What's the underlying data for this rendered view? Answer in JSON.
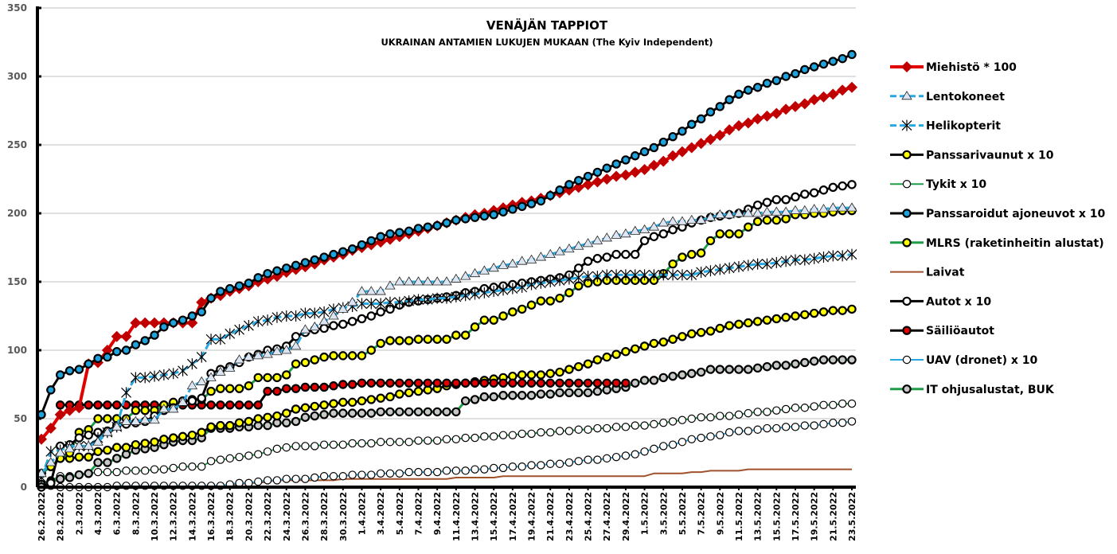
{
  "chart_data": {
    "type": "line",
    "title": "VENÄJÄN TAPPIOT",
    "subtitle": "UKRAINAN ANTAMIEN LUKUJEN MUKAAN (The Kyiv Independent)",
    "xlabel": "",
    "ylabel": "",
    "ylim": [
      0,
      350
    ],
    "yticks": [
      "0",
      "50",
      "100",
      "150",
      "200",
      "250",
      "300",
      "350"
    ],
    "grid": true,
    "legend_position": "right",
    "x": [
      "26.2.2022",
      "27.2.2022",
      "28.2.2022",
      "1.3.2022",
      "2.3.2022",
      "3.3.2022",
      "4.3.2022",
      "5.3.2022",
      "6.3.2022",
      "7.3.2022",
      "8.3.2022",
      "9.3.2022",
      "10.3.2022",
      "11.3.2022",
      "12.3.2022",
      "13.3.2022",
      "14.3.2022",
      "15.3.2022",
      "16.3.2022",
      "17.3.2022",
      "18.3.2022",
      "19.3.2022",
      "20.3.2022",
      "21.3.2022",
      "22.3.2022",
      "23.3.2022",
      "24.3.2022",
      "25.3.2022",
      "26.3.2022",
      "27.3.2022",
      "28.3.2022",
      "29.3.2022",
      "30.3.2022",
      "31.3.2022",
      "1.4.2022",
      "2.4.2022",
      "3.4.2022",
      "4.4.2022",
      "5.4.2022",
      "6.4.2022",
      "7.4.2022",
      "8.4.2022",
      "9.4.2022",
      "10.4.2022",
      "11.4.2022",
      "12.4.2022",
      "13.4.2022",
      "14.4.2022",
      "15.4.2022",
      "16.4.2022",
      "17.4.2022",
      "18.4.2022",
      "19.4.2022",
      "20.4.2022",
      "21.4.2022",
      "22.4.2022",
      "23.4.2022",
      "24.4.2022",
      "25.4.2022",
      "26.4.2022",
      "27.4.2022",
      "28.4.2022",
      "29.4.2022",
      "30.4.2022",
      "1.5.2022",
      "2.5.2022",
      "3.5.2022",
      "4.5.2022",
      "5.5.2022",
      "6.5.2022",
      "7.5.2022",
      "8.5.2022",
      "9.5.2022",
      "10.5.2022",
      "11.5.2022",
      "12.5.2022",
      "13.5.2022",
      "14.5.2022",
      "15.5.2022",
      "16.5.2022",
      "17.5.2022",
      "18.5.2022",
      "19.5.2022",
      "20.5.2022",
      "21.5.2022",
      "22.5.2022",
      "23.5.2022"
    ],
    "xticks": [
      "26.2.2022",
      "28.2.2022",
      "2.3.2022",
      "4.3.2022",
      "6.3.2022",
      "8.3.2022",
      "10.3.2022",
      "12.3.2022",
      "14.3.2022",
      "16.3.2022",
      "18.3.2022",
      "20.3.2022",
      "22.3.2022",
      "24.3.2022",
      "26.3.2022",
      "28.3.2022",
      "30.3.2022",
      "1.4.2022",
      "3.4.2022",
      "5.4.2022",
      "7.4.2022",
      "9.4.2022",
      "11.4.2022",
      "13.4.2022",
      "15.4.2022",
      "17.4.2022",
      "19.4.2022",
      "21.4.2022",
      "23.4.2022",
      "25.4.2022",
      "27.4.2022",
      "29.4.2022",
      "1.5.2022",
      "3.5.2022",
      "5.5.2022",
      "7.5.2022",
      "9.5.2022",
      "11.5.2022",
      "13.5.2022",
      "15.5.2022",
      "17.5.2022",
      "19.5.2022",
      "21.5.2022",
      "23.5.2022"
    ],
    "series": [
      {
        "name": "Miehistö * 100",
        "line": "#e00000",
        "marker": "diamond",
        "fill": "#c00000",
        "values": [
          35,
          43,
          53,
          56,
          58,
          90,
          91,
          100,
          110,
          110,
          120,
          120,
          120,
          120,
          120,
          120,
          120,
          135,
          138,
          140,
          143,
          145,
          147,
          150,
          152,
          154,
          157,
          159,
          161,
          163,
          166,
          168,
          170,
          173,
          175,
          177,
          179,
          181,
          183,
          185,
          187,
          189,
          191,
          193,
          195,
          197,
          199,
          200,
          202,
          204,
          206,
          208,
          209,
          211,
          213,
          215,
          217,
          219,
          221,
          223,
          225,
          227,
          228,
          230,
          232,
          235,
          238,
          242,
          245,
          248,
          251,
          254,
          257,
          261,
          264,
          266,
          269,
          271,
          273,
          276,
          278,
          280,
          283,
          285,
          287,
          290,
          292
        ]
      },
      {
        "name": "Lentokoneet",
        "line": "#29a8e0",
        "marker": "triangle",
        "fill": "#dce6f2",
        "dash": true,
        "values": [
          10,
          18,
          25,
          28,
          30,
          30,
          33,
          40,
          44,
          48,
          48,
          49,
          49,
          57,
          57,
          62,
          74,
          77,
          80,
          84,
          87,
          93,
          95,
          96,
          97,
          99,
          100,
          103,
          115,
          117,
          121,
          125,
          130,
          135,
          143,
          143,
          143,
          147,
          150,
          150,
          150,
          150,
          150,
          150,
          152,
          154,
          156,
          158,
          160,
          162,
          163,
          165,
          166,
          168,
          170,
          172,
          174,
          176,
          178,
          180,
          182,
          184,
          185,
          187,
          188,
          190,
          193,
          194,
          194,
          195,
          195,
          197,
          199,
          199,
          200,
          200,
          200,
          201,
          201,
          201,
          202,
          202,
          203,
          203,
          204,
          204,
          204
        ]
      },
      {
        "name": "Helikopterit",
        "line": "#29a8e0",
        "marker": "asterisk",
        "fill": "#000000",
        "dash": true,
        "values": [
          7,
          26,
          27,
          30,
          30,
          30,
          36,
          40,
          44,
          69,
          80,
          80,
          81,
          82,
          83,
          85,
          90,
          95,
          108,
          108,
          112,
          115,
          118,
          121,
          122,
          124,
          125,
          125,
          127,
          127,
          128,
          130,
          131,
          132,
          134,
          134,
          134,
          135,
          135,
          136,
          137,
          137,
          138,
          138,
          139,
          140,
          141,
          142,
          143,
          144,
          145,
          146,
          148,
          149,
          150,
          151,
          152,
          153,
          154,
          154,
          155,
          155,
          155,
          155,
          155,
          155,
          155,
          155,
          155,
          155,
          157,
          158,
          159,
          160,
          161,
          162,
          163,
          163,
          164,
          165,
          166,
          166,
          167,
          168,
          169,
          169,
          170
        ]
      },
      {
        "name": "Panssarivaunut x 10",
        "line": "#000000",
        "marker": "circle",
        "fill": "#ffff00",
        "values": [
          10,
          15,
          21,
          21,
          22,
          22,
          26,
          27,
          29,
          29,
          31,
          32,
          33,
          35,
          36,
          37,
          38,
          40,
          44,
          45,
          45,
          47,
          48,
          50,
          51,
          52,
          54,
          57,
          58,
          59,
          60,
          61,
          62,
          62,
          63,
          64,
          65,
          66,
          68,
          69,
          70,
          71,
          72,
          74,
          75,
          76,
          77,
          78,
          79,
          80,
          81,
          82,
          82,
          82,
          83,
          84,
          86,
          88,
          90,
          93,
          95,
          97,
          99,
          101,
          103,
          105,
          106,
          108,
          110,
          112,
          113,
          114,
          116,
          118,
          119,
          120,
          121,
          122,
          123,
          124,
          125,
          126,
          127,
          128,
          129,
          129,
          130
        ]
      },
      {
        "name": "Tykit x 10",
        "line": "#1e9e48",
        "marker": "circle",
        "fill": "#ffffff",
        "thin": true,
        "values": [
          2,
          5,
          8,
          8,
          9,
          10,
          11,
          11,
          11,
          12,
          12,
          12,
          13,
          13,
          14,
          15,
          15,
          15,
          19,
          20,
          21,
          22,
          23,
          24,
          26,
          28,
          29,
          30,
          30,
          30,
          31,
          31,
          31,
          32,
          32,
          32,
          33,
          33,
          33,
          33,
          34,
          34,
          34,
          35,
          35,
          36,
          36,
          37,
          37,
          38,
          38,
          39,
          39,
          40,
          40,
          41,
          41,
          42,
          42,
          43,
          43,
          44,
          44,
          45,
          45,
          46,
          47,
          48,
          49,
          50,
          51,
          51,
          52,
          52,
          53,
          54,
          55,
          55,
          56,
          57,
          58,
          58,
          59,
          60,
          60,
          61,
          61
        ]
      },
      {
        "name": "Panssaroidut ajoneuvot x 10",
        "line": "#000000",
        "marker": "circle",
        "fill": "#1fa3dc",
        "values": [
          53,
          71,
          82,
          85,
          86,
          90,
          94,
          95,
          99,
          100,
          104,
          107,
          111,
          117,
          120,
          122,
          125,
          128,
          138,
          143,
          145,
          147,
          149,
          153,
          156,
          158,
          160,
          162,
          164,
          166,
          168,
          170,
          172,
          174,
          177,
          180,
          183,
          185,
          186,
          187,
          189,
          190,
          191,
          193,
          195,
          196,
          197,
          198,
          199,
          201,
          203,
          205,
          207,
          209,
          213,
          217,
          221,
          224,
          227,
          230,
          233,
          236,
          239,
          242,
          245,
          248,
          252,
          256,
          260,
          265,
          269,
          274,
          278,
          283,
          287,
          290,
          292,
          295,
          297,
          300,
          302,
          305,
          307,
          309,
          311,
          313,
          316
        ]
      },
      {
        "name": "MLRS (raketinheitin alustat)",
        "line": "#1e9e48",
        "marker": "circle",
        "fill": "#ffff00",
        "values": [
          10,
          15,
          21,
          25,
          40,
          42,
          50,
          50,
          50,
          50,
          56,
          56,
          56,
          60,
          62,
          62,
          64,
          64,
          70,
          72,
          72,
          72,
          74,
          80,
          80,
          80,
          82,
          90,
          91,
          93,
          95,
          96,
          96,
          96,
          96,
          100,
          105,
          107,
          107,
          107,
          108,
          108,
          108,
          108,
          111,
          111,
          117,
          122,
          122,
          125,
          128,
          130,
          133,
          136,
          136,
          138,
          142,
          147,
          149,
          150,
          151,
          151,
          151,
          151,
          151,
          151,
          156,
          163,
          168,
          170,
          171,
          180,
          185,
          185,
          185,
          190,
          194,
          195,
          195,
          196,
          199,
          199,
          200,
          200,
          201,
          202,
          202
        ]
      },
      {
        "name": "Laivat",
        "line": "#a0522d",
        "marker": "none",
        "fill": "none",
        "thin": true,
        "values": [
          0,
          0,
          0,
          0,
          0,
          0,
          0,
          0,
          0,
          0,
          0,
          0,
          0,
          0,
          0,
          0,
          0,
          0,
          0,
          0,
          1,
          2,
          3,
          3,
          4,
          5,
          5,
          5,
          5,
          5,
          5,
          5,
          6,
          6,
          6,
          6,
          6,
          6,
          6,
          6,
          6,
          6,
          6,
          6,
          7,
          7,
          7,
          7,
          7,
          8,
          8,
          8,
          8,
          8,
          8,
          8,
          8,
          8,
          8,
          8,
          8,
          8,
          8,
          8,
          8,
          10,
          10,
          10,
          10,
          11,
          11,
          12,
          12,
          12,
          12,
          13,
          13,
          13,
          13,
          13,
          13,
          13,
          13,
          13,
          13,
          13,
          13
        ]
      },
      {
        "name": "Autot x 10",
        "line": "#000000",
        "marker": "circle",
        "fill": "#ffffff",
        "values": [
          0,
          3,
          30,
          31,
          36,
          38,
          40,
          41,
          45,
          46,
          47,
          48,
          52,
          56,
          58,
          63,
          63,
          65,
          83,
          86,
          88,
          91,
          95,
          97,
          100,
          101,
          103,
          110,
          113,
          115,
          116,
          118,
          119,
          121,
          123,
          125,
          128,
          130,
          133,
          135,
          136,
          137,
          138,
          139,
          140,
          142,
          143,
          145,
          146,
          147,
          148,
          149,
          150,
          151,
          152,
          153,
          155,
          160,
          165,
          167,
          168,
          170,
          170,
          170,
          180,
          183,
          185,
          188,
          190,
          193,
          195,
          197,
          198,
          199,
          200,
          203,
          206,
          208,
          210,
          210,
          212,
          214,
          215,
          217,
          219,
          220,
          221
        ]
      },
      {
        "name": "Säiliöautot",
        "line": "#000000",
        "marker": "circle",
        "fill": "#e00000",
        "values": [
          null,
          null,
          60,
          60,
          60,
          60,
          60,
          60,
          60,
          60,
          60,
          60,
          60,
          60,
          60,
          60,
          60,
          60,
          60,
          60,
          60,
          60,
          60,
          60,
          70,
          70,
          72,
          72,
          73,
          73,
          73,
          74,
          75,
          75,
          76,
          76,
          76,
          76,
          76,
          76,
          76,
          76,
          76,
          76,
          76,
          76,
          76,
          76,
          76,
          76,
          76,
          76,
          76,
          76,
          76,
          76,
          76,
          76,
          76,
          76,
          76,
          76,
          76,
          null,
          null,
          null,
          null,
          null,
          null,
          null,
          null,
          null,
          null,
          null,
          null,
          null,
          null,
          null,
          null,
          null,
          null,
          null,
          null,
          null,
          null,
          null,
          null
        ]
      },
      {
        "name": "UAV (dronet) x 10",
        "line": "#29a8e0",
        "marker": "circle",
        "fill": "#ffffff",
        "thin": true,
        "values": [
          0,
          1,
          0,
          0,
          0,
          0,
          0,
          0,
          1,
          1,
          1,
          1,
          1,
          1,
          1,
          1,
          1,
          1,
          1,
          1,
          2,
          3,
          3,
          4,
          5,
          5,
          6,
          6,
          6,
          7,
          8,
          8,
          8,
          9,
          9,
          9,
          10,
          10,
          10,
          11,
          11,
          11,
          11,
          12,
          12,
          12,
          13,
          13,
          14,
          14,
          15,
          15,
          16,
          16,
          17,
          17,
          18,
          19,
          20,
          20,
          21,
          22,
          23,
          24,
          26,
          28,
          30,
          31,
          33,
          35,
          36,
          37,
          38,
          40,
          41,
          41,
          42,
          43,
          43,
          44,
          44,
          45,
          45,
          46,
          47,
          47,
          48
        ]
      },
      {
        "name": "IT ohjusalustat, BUK",
        "line": "#1e9e48",
        "marker": "circle",
        "fill": "#c8c8c8",
        "values": [
          2,
          4,
          6,
          7,
          9,
          10,
          18,
          18,
          21,
          24,
          27,
          28,
          29,
          31,
          33,
          34,
          34,
          36,
          43,
          43,
          43,
          44,
          44,
          45,
          45,
          47,
          47,
          48,
          51,
          52,
          53,
          54,
          54,
          54,
          54,
          54,
          55,
          55,
          55,
          55,
          55,
          55,
          55,
          55,
          55,
          63,
          64,
          66,
          66,
          67,
          67,
          67,
          67,
          68,
          68,
          69,
          69,
          69,
          69,
          70,
          71,
          72,
          73,
          76,
          78,
          78,
          80,
          81,
          82,
          83,
          84,
          86,
          86,
          86,
          86,
          86,
          87,
          88,
          89,
          89,
          90,
          91,
          92,
          93,
          93,
          93,
          93
        ]
      }
    ]
  }
}
